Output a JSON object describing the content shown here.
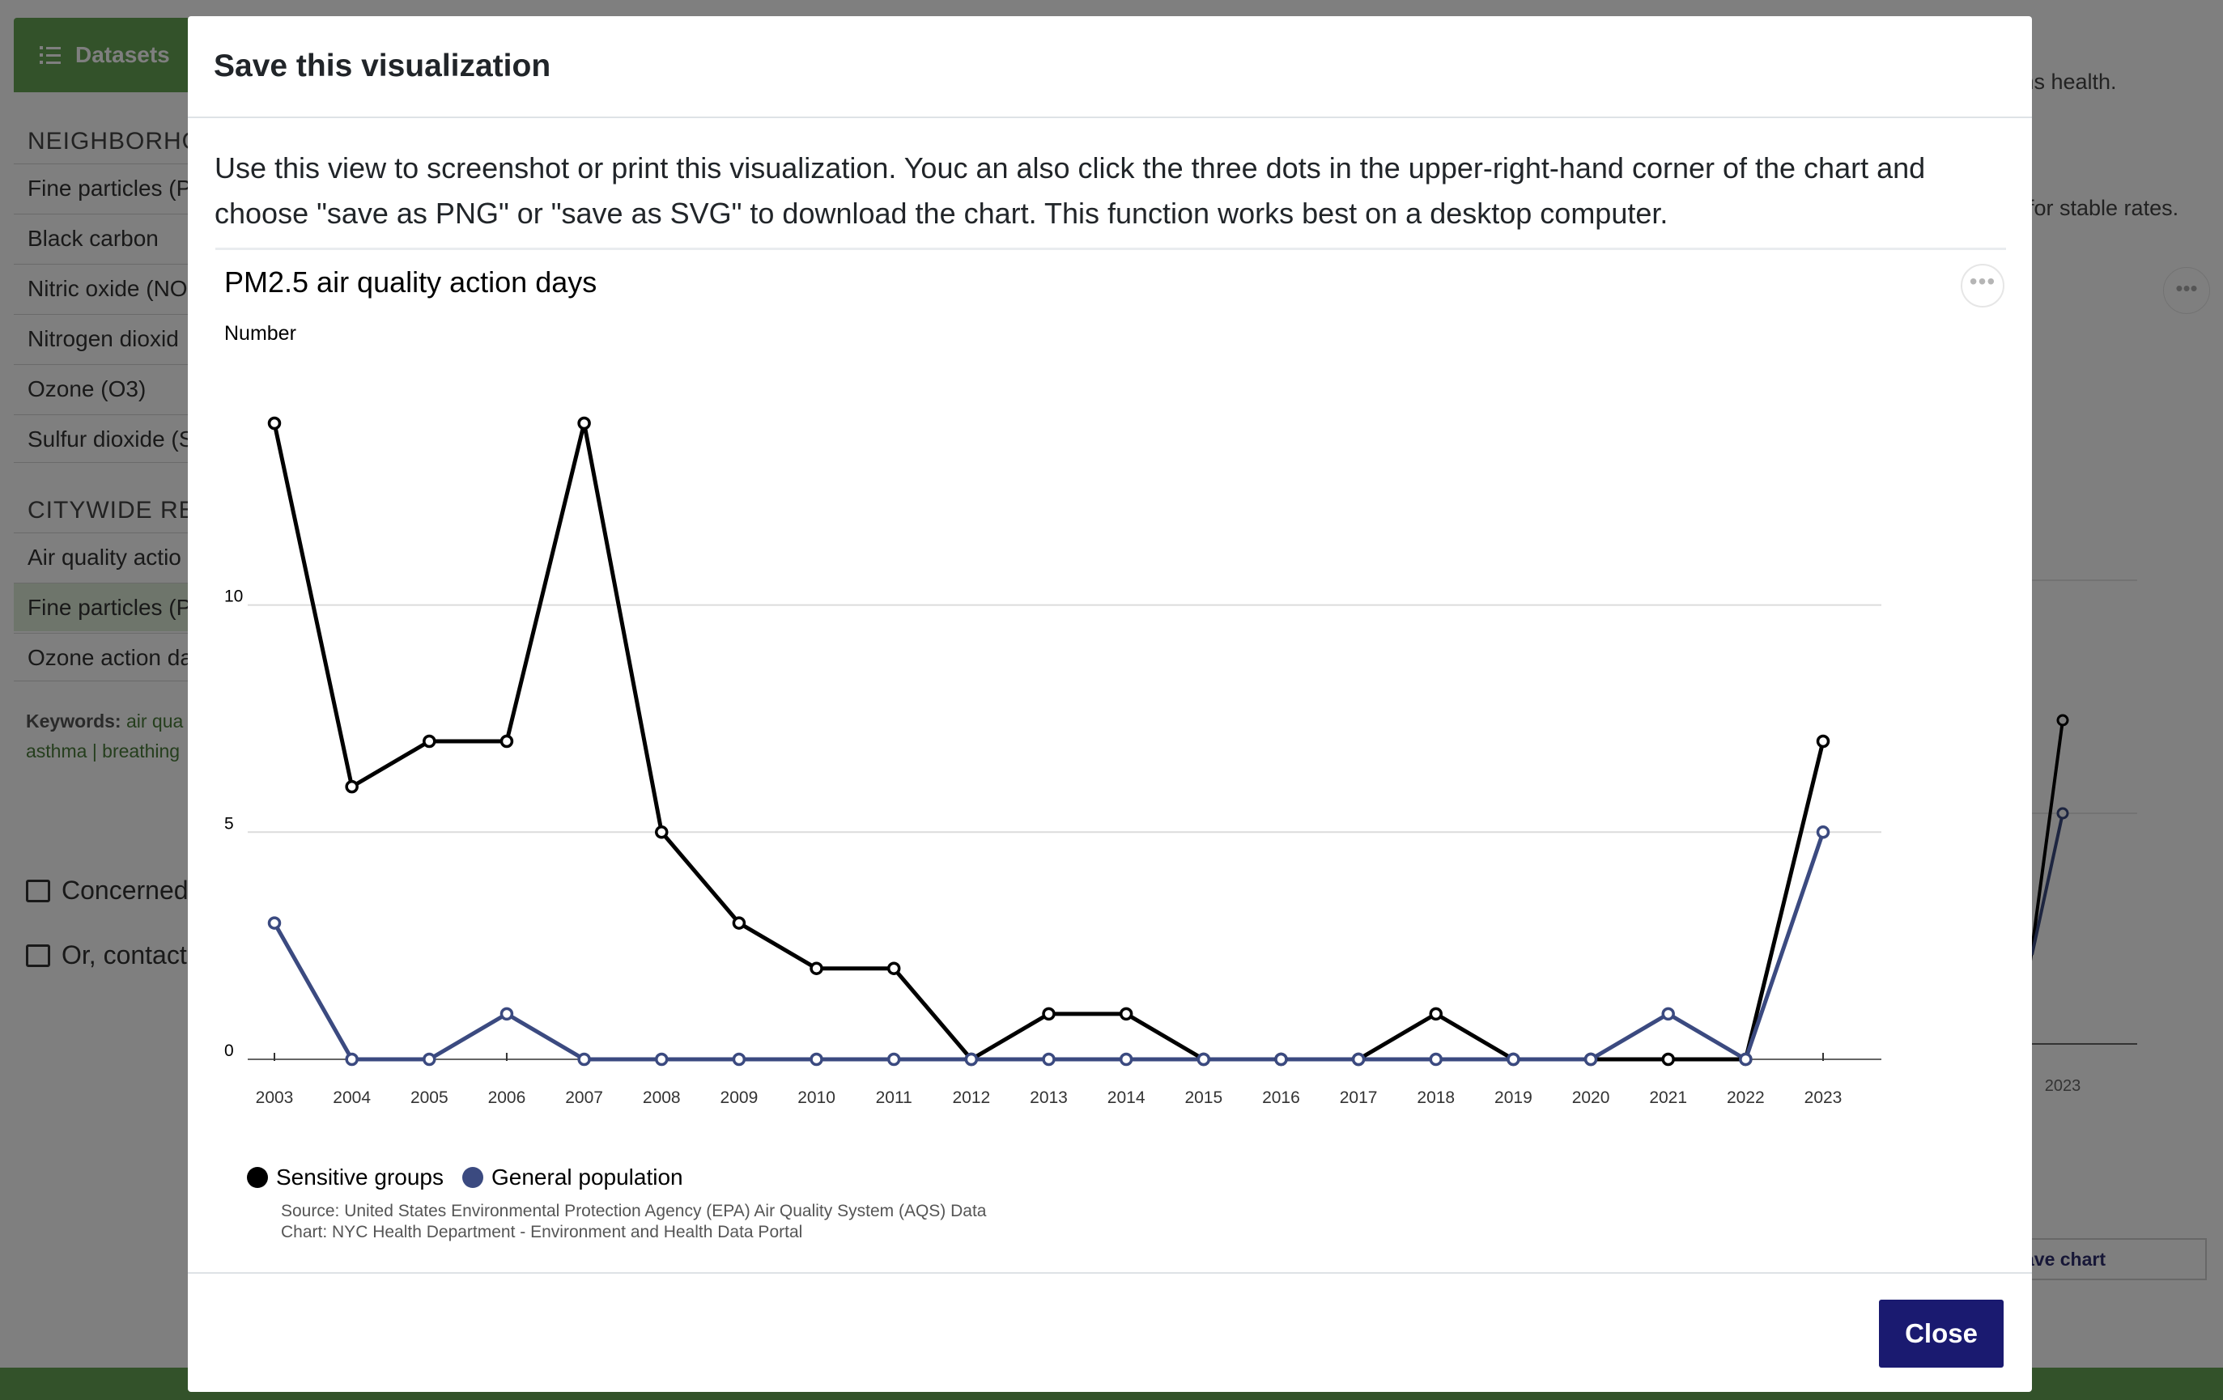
{
  "background_page": {
    "datasets_button": "Datasets",
    "sections": [
      {
        "heading": "NEIGHBORHO",
        "items": [
          "Fine particles (P",
          "Black carbon",
          "Nitric oxide (NO",
          "Nitrogen dioxid",
          "Ozone (O3)",
          "Sulfur dioxide (S"
        ]
      },
      {
        "heading": "CITYWIDE RE",
        "items": [
          "Air quality actio",
          "Fine particles (P",
          "Ozone action da"
        ]
      }
    ],
    "keywords_label": "Keywords:",
    "keywords_line1": "air qua",
    "keywords_line2": "asthma | breathing",
    "links": [
      "Concerned",
      "Or, contact"
    ],
    "right_text_1": "ms health.",
    "right_text_2": "for stable rates.",
    "right_dots": "•••",
    "right_year": "2023",
    "save_chart": "ave chart"
  },
  "modal": {
    "title": "Save this visualization",
    "body_text": "Use this view to screenshot or print this visualization. Youc an also click the three dots in the upper-right-hand corner of the chart and choose \"save as PNG\" or \"save as SVG\" to download the chart. This function works best on a desktop computer.",
    "chart_title": "PM2.5 air quality action days",
    "menu_dots": "•••",
    "close_label": "Close"
  },
  "chart_data": {
    "type": "line",
    "title": "PM2.5 air quality action days",
    "ylabel": "Number",
    "xlabel": "",
    "x": [
      "2003",
      "2004",
      "2005",
      "2006",
      "2007",
      "2008",
      "2009",
      "2010",
      "2011",
      "2012",
      "2013",
      "2014",
      "2015",
      "2016",
      "2017",
      "2018",
      "2019",
      "2020",
      "2021",
      "2022",
      "2023"
    ],
    "ylim": [
      0,
      14
    ],
    "yticks": [
      0,
      5,
      10
    ],
    "series": [
      {
        "name": "Sensitive groups",
        "color": "#000000",
        "values": [
          14,
          6,
          7,
          7,
          14,
          5,
          3,
          2,
          2,
          0,
          1,
          1,
          0,
          0,
          0,
          1,
          0,
          0,
          0,
          0,
          7
        ]
      },
      {
        "name": "General population",
        "color": "#3b4a80",
        "values": [
          3,
          0,
          0,
          1,
          0,
          0,
          0,
          0,
          0,
          0,
          0,
          0,
          0,
          0,
          0,
          0,
          0,
          0,
          1,
          0,
          5
        ]
      }
    ],
    "grid": true,
    "legend_position": "bottom-left",
    "source_lines": [
      "Source: United States Environmental Protection Agency (EPA) Air Quality System (AQS) Data",
      "Chart: NYC Health Department - Environment and Health Data Portal"
    ]
  }
}
